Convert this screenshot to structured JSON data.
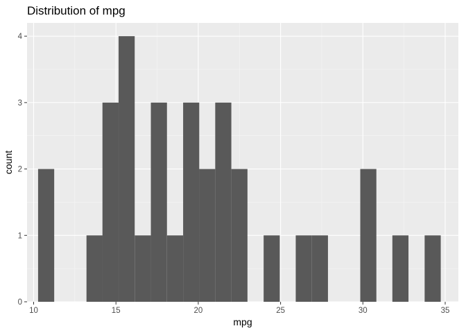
{
  "chart_data": {
    "type": "bar",
    "title": "Distribution of mpg",
    "xlabel": "mpg",
    "ylabel": "count",
    "xlim": [
      9.6,
      35.8
    ],
    "ylim": [
      0,
      4.2
    ],
    "bin_width": 0.9783,
    "x_ticks": [
      10,
      15,
      20,
      25,
      30,
      35
    ],
    "y_ticks": [
      0,
      1,
      2,
      3,
      4
    ],
    "bins": [
      {
        "x": 10.76,
        "count": 2
      },
      {
        "x": 11.74,
        "count": 0
      },
      {
        "x": 12.72,
        "count": 0
      },
      {
        "x": 13.7,
        "count": 1
      },
      {
        "x": 14.67,
        "count": 3
      },
      {
        "x": 15.65,
        "count": 4
      },
      {
        "x": 16.63,
        "count": 1
      },
      {
        "x": 17.61,
        "count": 3
      },
      {
        "x": 18.59,
        "count": 1
      },
      {
        "x": 19.57,
        "count": 3
      },
      {
        "x": 20.54,
        "count": 2
      },
      {
        "x": 21.52,
        "count": 3
      },
      {
        "x": 22.5,
        "count": 2
      },
      {
        "x": 23.48,
        "count": 0
      },
      {
        "x": 24.46,
        "count": 1
      },
      {
        "x": 25.43,
        "count": 0
      },
      {
        "x": 26.41,
        "count": 1
      },
      {
        "x": 27.39,
        "count": 1
      },
      {
        "x": 28.37,
        "count": 0
      },
      {
        "x": 29.35,
        "count": 0
      },
      {
        "x": 30.33,
        "count": 2
      },
      {
        "x": 31.3,
        "count": 0
      },
      {
        "x": 32.28,
        "count": 1
      },
      {
        "x": 33.26,
        "count": 0
      },
      {
        "x": 34.24,
        "count": 1
      }
    ],
    "grid": true,
    "colors": {
      "panel_background": "#ebebeb",
      "grid_major": "#ffffff",
      "grid_minor": "#f5f5f5",
      "bar_fill": "#595959",
      "tick_text": "#4d4d4d",
      "tick_mark": "#333333"
    }
  }
}
